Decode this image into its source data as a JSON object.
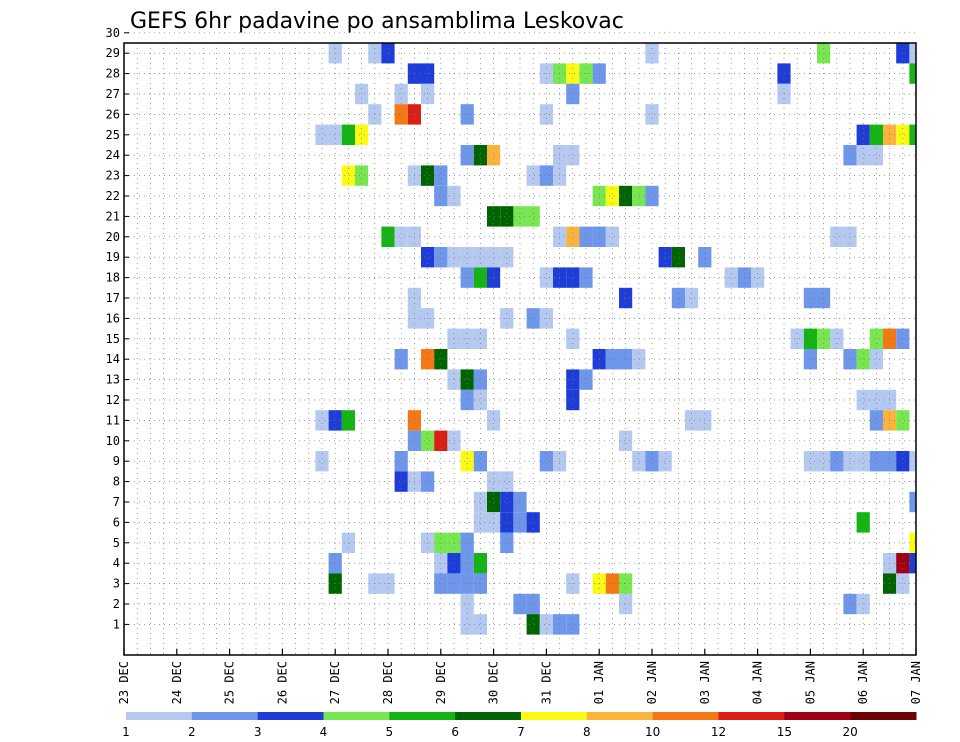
{
  "chart_data": {
    "type": "heatmap",
    "title": "GEFS 6hr padavine po ansamblima Leskovac",
    "xlabel": "",
    "ylabel": "",
    "x_tick_labels": [
      "23 DEC",
      "24 DEC",
      "25 DEC",
      "26 DEC",
      "27 DEC",
      "28 DEC",
      "29 DEC",
      "30 DEC",
      "31 DEC",
      "01 JAN",
      "02 JAN",
      "03 JAN",
      "04 JAN",
      "05 JAN",
      "06 JAN",
      "07 JAN"
    ],
    "y_tick_labels": [
      "1",
      "2",
      "3",
      "4",
      "5",
      "6",
      "7",
      "8",
      "9",
      "10",
      "11",
      "12",
      "13",
      "14",
      "15",
      "16",
      "17",
      "18",
      "19",
      "20",
      "21",
      "22",
      "23",
      "24",
      "25",
      "26",
      "27",
      "28",
      "29",
      "30"
    ],
    "x_range_steps": [
      0,
      60
    ],
    "y_range_members": [
      0,
      30
    ],
    "grid": true,
    "legend": {
      "placement": "bottom",
      "levels": [
        "1",
        "2",
        "3",
        "4",
        "5",
        "6",
        "7",
        "8",
        "10",
        "12",
        "15",
        "20"
      ],
      "colors": [
        "#b4c8f0",
        "#6e96eb",
        "#1e3cd7",
        "#78e650",
        "#14b414",
        "#006400",
        "#fafa14",
        "#fab43c",
        "#f57814",
        "#dc1e14",
        "#a00014",
        "#6e0000"
      ]
    },
    "cells": [
      [
        55,
        30,
        0
      ],
      [
        16,
        29,
        0
      ],
      [
        19,
        29,
        0
      ],
      [
        20,
        29,
        2
      ],
      [
        40,
        29,
        0
      ],
      [
        53,
        29,
        3
      ],
      [
        59,
        29,
        2
      ],
      [
        60,
        29,
        0
      ],
      [
        22,
        28,
        2
      ],
      [
        23,
        28,
        2
      ],
      [
        32,
        28,
        0
      ],
      [
        33,
        28,
        3
      ],
      [
        34,
        28,
        6
      ],
      [
        35,
        28,
        3
      ],
      [
        36,
        28,
        1
      ],
      [
        50,
        28,
        2
      ],
      [
        60,
        28,
        4
      ],
      [
        18,
        27,
        0
      ],
      [
        21,
        27,
        0
      ],
      [
        23,
        27,
        0
      ],
      [
        34,
        27,
        1
      ],
      [
        50,
        27,
        0
      ],
      [
        19,
        26,
        0
      ],
      [
        21,
        26,
        8
      ],
      [
        22,
        26,
        9
      ],
      [
        26,
        26,
        1
      ],
      [
        32,
        26,
        0
      ],
      [
        40,
        26,
        0
      ],
      [
        15,
        25,
        0
      ],
      [
        16,
        25,
        0
      ],
      [
        17,
        25,
        4
      ],
      [
        18,
        25,
        6
      ],
      [
        56,
        25,
        2
      ],
      [
        57,
        25,
        4
      ],
      [
        58,
        25,
        7
      ],
      [
        59,
        25,
        6
      ],
      [
        60,
        25,
        4
      ],
      [
        26,
        24,
        1
      ],
      [
        27,
        24,
        5
      ],
      [
        28,
        24,
        7
      ],
      [
        33,
        24,
        0
      ],
      [
        34,
        24,
        0
      ],
      [
        55,
        24,
        1
      ],
      [
        56,
        24,
        0
      ],
      [
        57,
        24,
        0
      ],
      [
        17,
        23,
        6
      ],
      [
        18,
        23,
        3
      ],
      [
        22,
        23,
        0
      ],
      [
        23,
        23,
        5
      ],
      [
        24,
        23,
        1
      ],
      [
        31,
        23,
        0
      ],
      [
        32,
        23,
        1
      ],
      [
        33,
        23,
        0
      ],
      [
        24,
        22,
        1
      ],
      [
        25,
        22,
        0
      ],
      [
        36,
        22,
        3
      ],
      [
        37,
        22,
        6
      ],
      [
        38,
        22,
        5
      ],
      [
        39,
        22,
        3
      ],
      [
        40,
        22,
        1
      ],
      [
        28,
        21,
        5
      ],
      [
        29,
        21,
        5
      ],
      [
        30,
        21,
        3
      ],
      [
        31,
        21,
        3
      ],
      [
        20,
        20,
        4
      ],
      [
        21,
        20,
        0
      ],
      [
        22,
        20,
        0
      ],
      [
        33,
        20,
        0
      ],
      [
        34,
        20,
        7
      ],
      [
        35,
        20,
        1
      ],
      [
        36,
        20,
        1
      ],
      [
        37,
        20,
        0
      ],
      [
        54,
        20,
        0
      ],
      [
        55,
        20,
        0
      ],
      [
        23,
        19,
        2
      ],
      [
        24,
        19,
        1
      ],
      [
        25,
        19,
        0
      ],
      [
        26,
        19,
        0
      ],
      [
        27,
        19,
        0
      ],
      [
        28,
        19,
        0
      ],
      [
        29,
        19,
        0
      ],
      [
        41,
        19,
        2
      ],
      [
        42,
        19,
        5
      ],
      [
        44,
        19,
        1
      ],
      [
        26,
        18,
        1
      ],
      [
        27,
        18,
        4
      ],
      [
        28,
        18,
        2
      ],
      [
        32,
        18,
        0
      ],
      [
        33,
        18,
        2
      ],
      [
        34,
        18,
        2
      ],
      [
        35,
        18,
        1
      ],
      [
        46,
        18,
        0
      ],
      [
        47,
        18,
        1
      ],
      [
        48,
        18,
        0
      ],
      [
        22,
        17,
        0
      ],
      [
        38,
        17,
        2
      ],
      [
        42,
        17,
        1
      ],
      [
        43,
        17,
        0
      ],
      [
        52,
        17,
        1
      ],
      [
        53,
        17,
        1
      ],
      [
        22,
        16,
        0
      ],
      [
        23,
        16,
        0
      ],
      [
        29,
        16,
        0
      ],
      [
        31,
        16,
        1
      ],
      [
        32,
        16,
        0
      ],
      [
        25,
        15,
        0
      ],
      [
        26,
        15,
        0
      ],
      [
        27,
        15,
        0
      ],
      [
        34,
        15,
        0
      ],
      [
        51,
        15,
        0
      ],
      [
        52,
        15,
        4
      ],
      [
        53,
        15,
        3
      ],
      [
        54,
        15,
        0
      ],
      [
        57,
        15,
        3
      ],
      [
        58,
        15,
        8
      ],
      [
        59,
        15,
        1
      ],
      [
        21,
        14,
        1
      ],
      [
        23,
        14,
        8
      ],
      [
        24,
        14,
        5
      ],
      [
        36,
        14,
        2
      ],
      [
        37,
        14,
        1
      ],
      [
        38,
        14,
        1
      ],
      [
        39,
        14,
        0
      ],
      [
        52,
        14,
        1
      ],
      [
        55,
        14,
        1
      ],
      [
        56,
        14,
        3
      ],
      [
        57,
        14,
        0
      ],
      [
        25,
        13,
        0
      ],
      [
        26,
        13,
        5
      ],
      [
        27,
        13,
        1
      ],
      [
        34,
        13,
        2
      ],
      [
        35,
        13,
        1
      ],
      [
        26,
        12,
        1
      ],
      [
        27,
        12,
        0
      ],
      [
        34,
        12,
        2
      ],
      [
        56,
        12,
        0
      ],
      [
        57,
        12,
        0
      ],
      [
        58,
        12,
        0
      ],
      [
        15,
        11,
        0
      ],
      [
        16,
        11,
        2
      ],
      [
        17,
        11,
        4
      ],
      [
        22,
        11,
        8
      ],
      [
        28,
        11,
        0
      ],
      [
        43,
        11,
        0
      ],
      [
        44,
        11,
        0
      ],
      [
        57,
        11,
        1
      ],
      [
        58,
        11,
        7
      ],
      [
        59,
        11,
        3
      ],
      [
        22,
        10,
        1
      ],
      [
        23,
        10,
        3
      ],
      [
        24,
        10,
        9
      ],
      [
        25,
        10,
        0
      ],
      [
        38,
        10,
        0
      ],
      [
        15,
        9,
        0
      ],
      [
        21,
        9,
        1
      ],
      [
        26,
        9,
        6
      ],
      [
        27,
        9,
        1
      ],
      [
        32,
        9,
        1
      ],
      [
        33,
        9,
        0
      ],
      [
        39,
        9,
        0
      ],
      [
        40,
        9,
        1
      ],
      [
        41,
        9,
        0
      ],
      [
        52,
        9,
        0
      ],
      [
        53,
        9,
        0
      ],
      [
        54,
        9,
        1
      ],
      [
        55,
        9,
        0
      ],
      [
        56,
        9,
        0
      ],
      [
        57,
        9,
        1
      ],
      [
        58,
        9,
        1
      ],
      [
        59,
        9,
        2
      ],
      [
        60,
        9,
        0
      ],
      [
        21,
        8,
        2
      ],
      [
        22,
        8,
        0
      ],
      [
        23,
        8,
        1
      ],
      [
        28,
        8,
        0
      ],
      [
        29,
        8,
        0
      ],
      [
        27,
        7,
        0
      ],
      [
        28,
        7,
        5
      ],
      [
        29,
        7,
        2
      ],
      [
        30,
        7,
        1
      ],
      [
        60,
        7,
        1
      ],
      [
        27,
        6,
        0
      ],
      [
        28,
        6,
        0
      ],
      [
        29,
        6,
        2
      ],
      [
        30,
        6,
        1
      ],
      [
        31,
        6,
        2
      ],
      [
        56,
        6,
        4
      ],
      [
        17,
        5,
        0
      ],
      [
        23,
        5,
        0
      ],
      [
        24,
        5,
        3
      ],
      [
        25,
        5,
        3
      ],
      [
        26,
        5,
        1
      ],
      [
        29,
        5,
        1
      ],
      [
        60,
        5,
        6
      ],
      [
        16,
        4,
        1
      ],
      [
        24,
        4,
        0
      ],
      [
        25,
        4,
        2
      ],
      [
        26,
        4,
        1
      ],
      [
        27,
        4,
        4
      ],
      [
        58,
        4,
        0
      ],
      [
        59,
        4,
        10
      ],
      [
        60,
        4,
        2
      ],
      [
        16,
        3,
        5
      ],
      [
        19,
        3,
        0
      ],
      [
        20,
        3,
        0
      ],
      [
        24,
        3,
        1
      ],
      [
        25,
        3,
        1
      ],
      [
        26,
        3,
        1
      ],
      [
        27,
        3,
        1
      ],
      [
        34,
        3,
        0
      ],
      [
        36,
        3,
        6
      ],
      [
        37,
        3,
        8
      ],
      [
        38,
        3,
        3
      ],
      [
        58,
        3,
        5
      ],
      [
        59,
        3,
        0
      ],
      [
        26,
        2,
        0
      ],
      [
        30,
        2,
        1
      ],
      [
        31,
        2,
        1
      ],
      [
        38,
        2,
        0
      ],
      [
        55,
        2,
        1
      ],
      [
        56,
        2,
        0
      ],
      [
        26,
        1,
        0
      ],
      [
        27,
        1,
        0
      ],
      [
        31,
        1,
        5
      ],
      [
        32,
        1,
        0
      ],
      [
        33,
        1,
        1
      ],
      [
        34,
        1,
        1
      ]
    ]
  }
}
